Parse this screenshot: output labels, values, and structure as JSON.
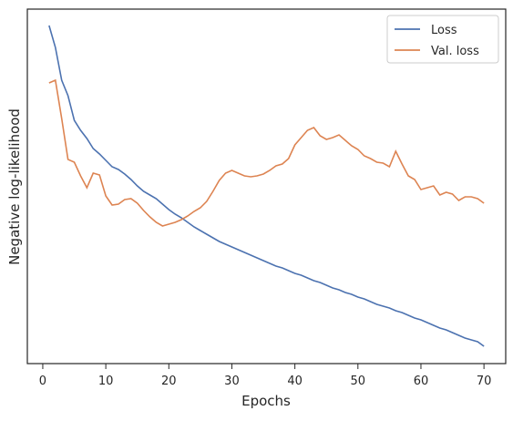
{
  "chart_data": {
    "type": "line",
    "xlabel": "Epochs",
    "ylabel": "Negative log-likelihood",
    "x": [
      1,
      2,
      3,
      4,
      5,
      6,
      7,
      8,
      9,
      10,
      11,
      12,
      13,
      14,
      15,
      16,
      17,
      18,
      19,
      20,
      21,
      22,
      23,
      24,
      25,
      26,
      27,
      28,
      29,
      30,
      31,
      32,
      33,
      34,
      35,
      36,
      37,
      38,
      39,
      40,
      41,
      42,
      43,
      44,
      45,
      46,
      47,
      48,
      49,
      50,
      51,
      52,
      53,
      54,
      55,
      56,
      57,
      58,
      59,
      60,
      61,
      62,
      63,
      64,
      65,
      66,
      67,
      68,
      69,
      70
    ],
    "series": [
      {
        "name": "Loss",
        "color": "#4c72b0",
        "values": [
          371,
          347,
          311,
          294,
          267,
          256,
          247,
          236,
          230,
          223,
          216,
          213,
          208,
          202,
          195,
          189,
          185,
          181,
          175,
          169,
          164,
          160,
          155,
          150,
          146,
          142,
          138,
          134,
          131,
          128,
          125,
          122,
          119,
          116,
          113,
          110,
          107,
          105,
          102,
          99,
          97,
          94,
          91,
          89,
          86,
          83,
          81,
          78,
          76,
          73,
          71,
          68,
          65,
          63,
          61,
          58,
          56,
          53,
          50,
          48,
          45,
          42,
          39,
          37,
          34,
          31,
          28,
          26,
          24,
          19
        ]
      },
      {
        "name": "Val. loss",
        "color": "#dd8452",
        "values": [
          308,
          311,
          269,
          224,
          221,
          206,
          193,
          209,
          207,
          184,
          174,
          175,
          180,
          181,
          176,
          168,
          161,
          155,
          151,
          153,
          155,
          158,
          162,
          167,
          171,
          178,
          189,
          201,
          209,
          212,
          209,
          206,
          205,
          206,
          208,
          212,
          217,
          219,
          225,
          240,
          248,
          256,
          259,
          250,
          246,
          248,
          251,
          245,
          239,
          235,
          228,
          225,
          221,
          220,
          216,
          233,
          219,
          206,
          202,
          191,
          193,
          195,
          185,
          188,
          186,
          179,
          183,
          183,
          181,
          176
        ]
      }
    ],
    "xlim": [
      -2.45,
      73.45
    ],
    "xticks": [
      0,
      10,
      20,
      30,
      40,
      50,
      60,
      70
    ],
    "ylim": [
      0,
      389
    ],
    "legend": "upper right"
  }
}
